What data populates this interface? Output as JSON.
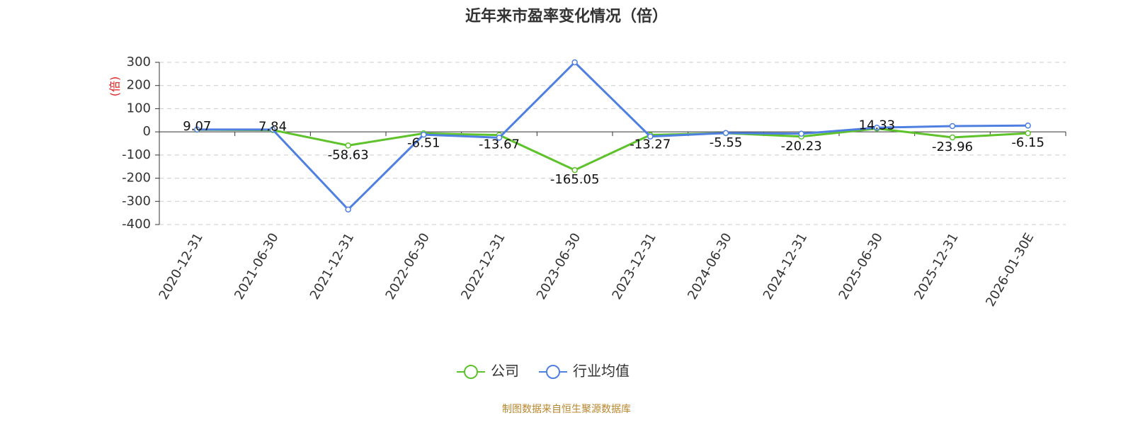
{
  "chart_data": {
    "type": "line",
    "title": "近年来市盈率变化情况（倍）",
    "y_label": "(倍)",
    "source": "制图数据来自恒生聚源数据库",
    "categories": [
      "2020-12-31",
      "2021-06-30",
      "2021-12-31",
      "2022-06-30",
      "2022-12-31",
      "2023-06-30",
      "2023-12-31",
      "2024-06-30",
      "2024-12-31",
      "2025-06-30",
      "2025-12-31",
      "2026-01-30E"
    ],
    "series": [
      {
        "name": "公司",
        "color": "#5ec22b",
        "show_labels": true,
        "values": [
          9.07,
          7.84,
          -58.63,
          -6.51,
          -13.67,
          -165.05,
          -13.27,
          -5.55,
          -20.23,
          14.33,
          -23.96,
          -6.15
        ]
      },
      {
        "name": "行业均值",
        "color": "#4f80e1",
        "show_labels": false,
        "values": [
          10,
          10,
          -335,
          -12,
          -25,
          300,
          -20,
          -5,
          -8,
          18,
          25,
          27
        ]
      }
    ],
    "ylim": [
      -400,
      300
    ],
    "yticks": [
      -400,
      -300,
      -200,
      -100,
      0,
      100,
      200,
      300
    ],
    "grid": true
  }
}
